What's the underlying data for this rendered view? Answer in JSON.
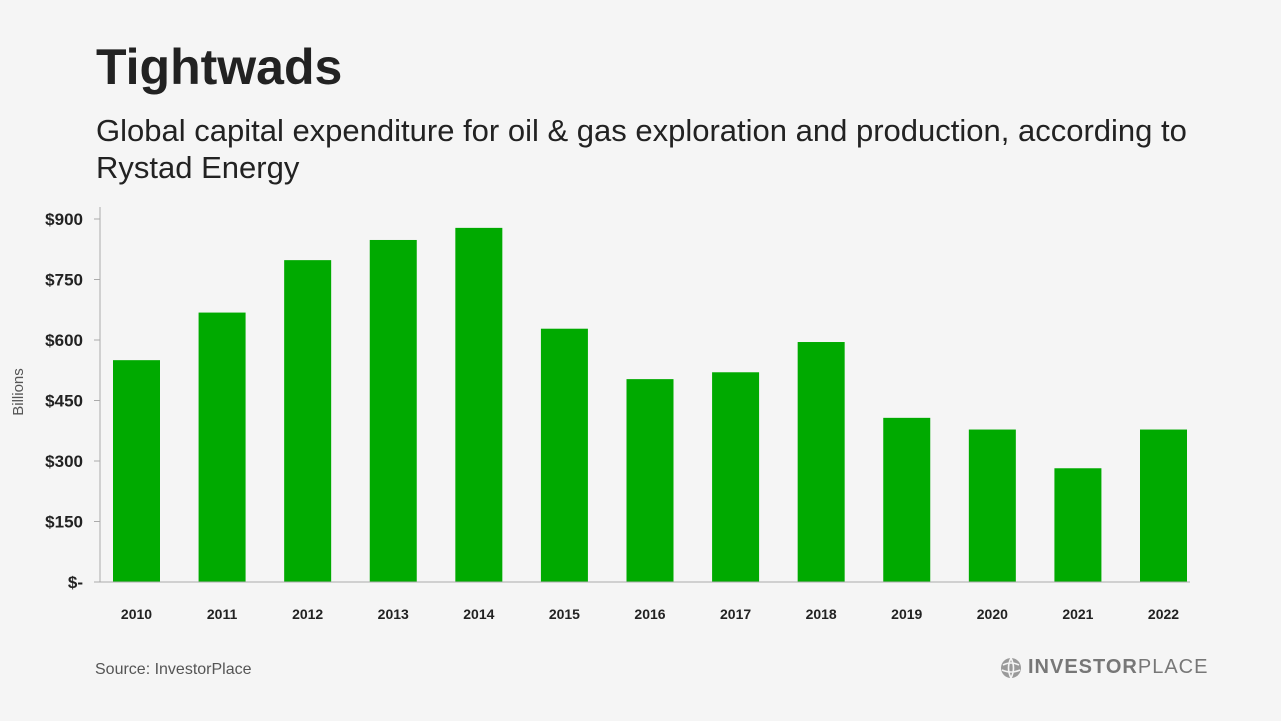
{
  "header": {
    "title": "Tightwads",
    "subtitle": "Global capital expenditure for oil & gas exploration and production, according to Rystad Energy"
  },
  "chart_data": {
    "type": "bar",
    "categories": [
      "2010",
      "2011",
      "2012",
      "2013",
      "2014",
      "2015",
      "2016",
      "2017",
      "2018",
      "2019",
      "2020",
      "2021",
      "2022"
    ],
    "values": [
      550,
      668,
      798,
      848,
      878,
      628,
      503,
      520,
      595,
      407,
      378,
      282,
      378
    ],
    "ylabel": "Billions",
    "ylim": [
      0,
      900
    ],
    "yticks": [
      0,
      150,
      300,
      450,
      600,
      750,
      900
    ],
    "ytick_labels": [
      "$-",
      "$150",
      "$300",
      "$450",
      "$600",
      "$750",
      "$900"
    ],
    "bar_color": "#00aa00",
    "grid": false
  },
  "footer": {
    "source": "Source: InvestorPlace",
    "logo_bold": "INVESTOR",
    "logo_light": "PLACE"
  }
}
